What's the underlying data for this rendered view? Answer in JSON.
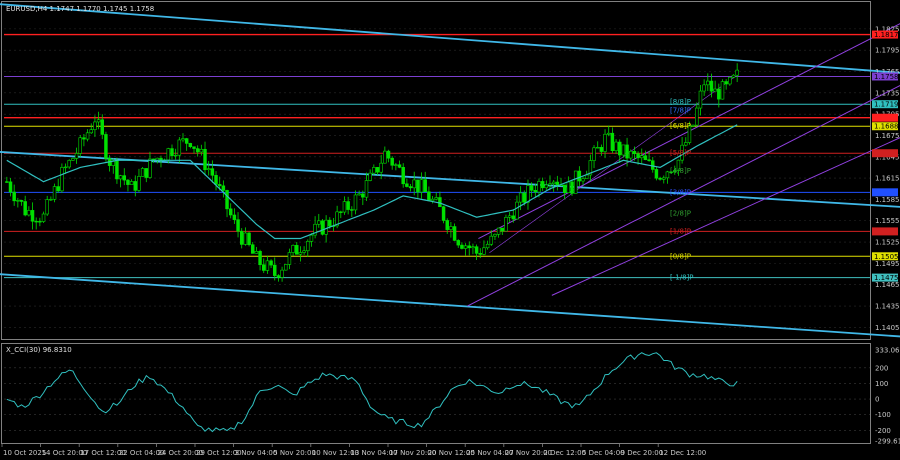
{
  "header": {
    "title": "EURUSD,H4  1.1747 1.1770 1.1745 1.1758"
  },
  "indicator": {
    "title": "X_CCI(30) 96.8310"
  },
  "chart_data": [
    {
      "type": "candlestick",
      "symbol": "EURUSD",
      "timeframe": "H4",
      "ohlc_last": {
        "open": 1.1747,
        "high": 1.177,
        "low": 1.1745,
        "close": 1.1758
      },
      "ylim": [
        1.139,
        1.186
      ],
      "y_ticks": [
        "1.1825",
        "1.1795",
        "1.1765",
        "1.1735",
        "1.1705",
        "1.1675",
        "1.1645",
        "1.1615",
        "1.1585",
        "1.1555",
        "1.1525",
        "1.1495",
        "1.1465",
        "1.1435",
        "1.1405"
      ],
      "x_labels": [
        "10 Oct 2025",
        "14 Oct 20:00",
        "17 Oct 12:00",
        "22 Oct 04:00",
        "24 Oct 20:00",
        "29 Oct 12:00",
        "3 Nov 04:00",
        "5 Nov 20:00",
        "10 Nov 12:00",
        "13 Nov 04:00",
        "17 Nov 20:00",
        "20 Nov 12:00",
        "25 Nov 04:00",
        "27 Nov 20:00",
        "2 Dec 12:00",
        "5 Dec 04:00",
        "9 Dec 20:00",
        "12 Dec 12:00"
      ],
      "price_path": [
        [
          0,
          1.161
        ],
        [
          5,
          1.157
        ],
        [
          10,
          1.156
        ],
        [
          15,
          1.162
        ],
        [
          20,
          1.166
        ],
        [
          24,
          1.17
        ],
        [
          28,
          1.164
        ],
        [
          34,
          1.16
        ],
        [
          40,
          1.164
        ],
        [
          46,
          1.166
        ],
        [
          50,
          1.167
        ],
        [
          56,
          1.162
        ],
        [
          62,
          1.155
        ],
        [
          68,
          1.15
        ],
        [
          73,
          1.148
        ],
        [
          78,
          1.151
        ],
        [
          84,
          1.154
        ],
        [
          90,
          1.156
        ],
        [
          96,
          1.159
        ],
        [
          100,
          1.162
        ],
        [
          103,
          1.165
        ],
        [
          108,
          1.162
        ],
        [
          113,
          1.16
        ],
        [
          118,
          1.157
        ],
        [
          123,
          1.153
        ],
        [
          128,
          1.151
        ],
        [
          133,
          1.153
        ],
        [
          138,
          1.157
        ],
        [
          143,
          1.16
        ],
        [
          148,
          1.162
        ],
        [
          153,
          1.16
        ],
        [
          158,
          1.163
        ],
        [
          163,
          1.167
        ],
        [
          168,
          1.165
        ],
        [
          173,
          1.164
        ],
        [
          178,
          1.162
        ],
        [
          183,
          1.164
        ],
        [
          187,
          1.169
        ],
        [
          190,
          1.175
        ],
        [
          193,
          1.1735
        ],
        [
          196,
          1.174
        ],
        [
          199,
          1.1758
        ]
      ],
      "ma": [
        [
          0,
          1.164
        ],
        [
          10,
          1.161
        ],
        [
          20,
          1.163
        ],
        [
          30,
          1.164
        ],
        [
          40,
          1.164
        ],
        [
          50,
          1.164
        ],
        [
          56,
          1.161
        ],
        [
          62,
          1.158
        ],
        [
          68,
          1.155
        ],
        [
          73,
          1.153
        ],
        [
          80,
          1.153
        ],
        [
          90,
          1.155
        ],
        [
          100,
          1.157
        ],
        [
          108,
          1.159
        ],
        [
          118,
          1.158
        ],
        [
          128,
          1.156
        ],
        [
          138,
          1.157
        ],
        [
          148,
          1.16
        ],
        [
          158,
          1.162
        ],
        [
          168,
          1.164
        ],
        [
          178,
          1.163
        ],
        [
          188,
          1.166
        ],
        [
          199,
          1.169
        ]
      ],
      "horizontal_levels": [
        {
          "price": 1.1817,
          "color": "#ff2020",
          "width": 1.4,
          "label": "1.1817"
        },
        {
          "price": 1.1758,
          "color": "#7b3fd0",
          "width": 1,
          "label": "1.1758"
        },
        {
          "price": 1.1719,
          "color": "#30c0c0",
          "width": 1,
          "label": "1.1719"
        },
        {
          "price": 1.17,
          "color": "#ff2020",
          "width": 1.4,
          "label": ""
        },
        {
          "price": 1.1688,
          "color": "#e0e000",
          "width": 1,
          "label": "1.1688"
        },
        {
          "price": 1.165,
          "color": "#d02020",
          "width": 1,
          "label": ""
        },
        {
          "price": 1.1595,
          "color": "#2050ff",
          "width": 1,
          "label": ""
        },
        {
          "price": 1.154,
          "color": "#d02020",
          "width": 1,
          "label": ""
        },
        {
          "price": 1.1505,
          "color": "#e0e000",
          "width": 1,
          "label": "1.1505"
        },
        {
          "price": 1.1475,
          "color": "#40c0c0",
          "width": 1,
          "label": "1.1475"
        }
      ],
      "murrey_labels": [
        "[8/8]P",
        "[7/8]P",
        "[6/8]P",
        "[5/8]P",
        "[4/8]P",
        "[3/8]P",
        "[2/8]P",
        "[1/8]P",
        "[0/8]P",
        "[-1/8]P"
      ],
      "colors": {
        "bull": "#00e000",
        "bear": "#00e000",
        "ma": "#30c0c0",
        "trend": "#40b8e8",
        "channel": "#9040e0"
      }
    },
    {
      "type": "line",
      "name": "X_CCI(30)",
      "last_value": 96.831,
      "ylim": [
        -275,
        340
      ],
      "y_ticks": [
        "333.061",
        "200",
        "100",
        "0",
        "-100",
        "-200",
        "-299.613"
      ],
      "values": [
        0,
        -50,
        20,
        120,
        190,
        60,
        -80,
        -30,
        90,
        150,
        60,
        -40,
        -180,
        -200,
        -210,
        -120,
        60,
        90,
        20,
        100,
        160,
        140,
        120,
        -60,
        -130,
        -150,
        -170,
        -70,
        60,
        120,
        80,
        40,
        100,
        90,
        40,
        -20,
        -50,
        60,
        180,
        250,
        296,
        290,
        210,
        160,
        150,
        110,
        97
      ]
    }
  ]
}
